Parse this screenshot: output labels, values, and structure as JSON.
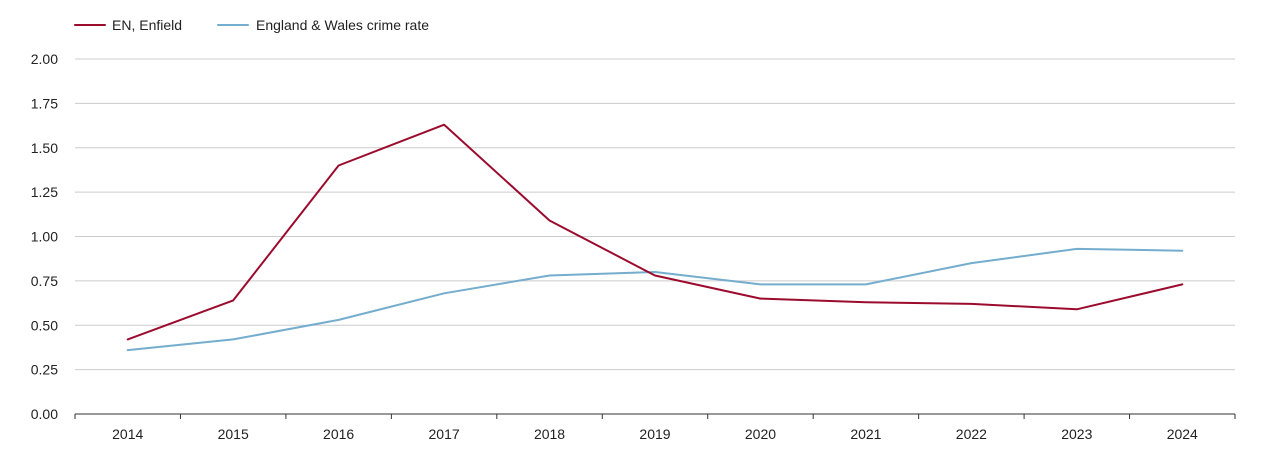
{
  "chart_data": {
    "type": "line",
    "title": "",
    "xlabel": "",
    "ylabel": "",
    "categories": [
      "2014",
      "2015",
      "2016",
      "2017",
      "2018",
      "2019",
      "2020",
      "2021",
      "2022",
      "2023",
      "2024"
    ],
    "ylim": [
      0,
      2
    ],
    "yticks": [
      "0.00",
      "0.25",
      "0.50",
      "0.75",
      "1.00",
      "1.25",
      "1.50",
      "1.75",
      "2.00"
    ],
    "grid": true,
    "legend_position": "top-left",
    "series": [
      {
        "name": "EN, Enfield",
        "color": "#9b0b2e",
        "values": [
          0.42,
          0.64,
          1.4,
          1.63,
          1.09,
          0.78,
          0.65,
          0.63,
          0.62,
          0.59,
          0.73
        ]
      },
      {
        "name": "England & Wales crime rate",
        "color": "#74adcd",
        "values": [
          0.36,
          0.42,
          0.53,
          0.68,
          0.78,
          0.8,
          0.73,
          0.73,
          0.85,
          0.93,
          0.92
        ]
      }
    ]
  }
}
